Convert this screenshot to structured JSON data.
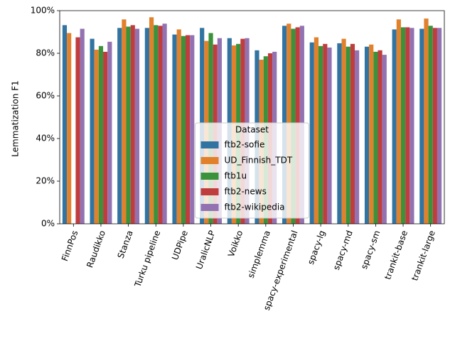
{
  "chart_data": {
    "type": "bar",
    "ylabel": "Lemmatization F1",
    "categories": [
      "FinnPos",
      "Raudikko",
      "Stanza",
      "Turku pipeline",
      "UDPipe",
      "UralicNLP",
      "Voikko",
      "simplemma",
      "spacy-experimental",
      "spacy-lg",
      "spacy-md",
      "spacy-sm",
      "trankit-base",
      "trankit-large"
    ],
    "legend_title": "Dataset",
    "legend": "lower center",
    "series": [
      {
        "name": "ftb2-sofie",
        "color": "#3274a1",
        "values": [
          93.2,
          86.8,
          91.9,
          91.9,
          88.8,
          91.9,
          87.1,
          81.4,
          92.9,
          85.1,
          84.7,
          83.1,
          91.2,
          91.5
        ]
      },
      {
        "name": "UD_Finnish_TDT",
        "color": "#e1812c",
        "values": [
          89.5,
          81.7,
          95.9,
          96.9,
          91.2,
          85.8,
          83.7,
          77.0,
          93.9,
          87.5,
          86.8,
          84.1,
          95.9,
          96.3
        ]
      },
      {
        "name": "ftb1u",
        "color": "#3a923a",
        "values": [
          null,
          83.4,
          92.5,
          93.2,
          88.1,
          89.5,
          84.4,
          78.6,
          91.5,
          83.4,
          83.1,
          80.7,
          92.2,
          92.9
        ]
      },
      {
        "name": "ftb2-news",
        "color": "#c03d3e",
        "values": [
          87.5,
          80.7,
          93.2,
          92.9,
          88.5,
          84.1,
          86.8,
          80.0,
          92.2,
          84.4,
          84.4,
          81.4,
          92.2,
          91.9
        ]
      },
      {
        "name": "ftb2-wikipedia",
        "color": "#9372b2",
        "values": [
          91.5,
          85.4,
          91.5,
          93.9,
          88.5,
          87.1,
          87.1,
          80.7,
          92.9,
          82.7,
          81.4,
          79.3,
          91.9,
          91.9
        ]
      }
    ],
    "ylim": [
      0,
      100
    ],
    "yticks": [
      {
        "value": 0,
        "label": "0%"
      },
      {
        "value": 20,
        "label": "20%"
      },
      {
        "value": 40,
        "label": "40%"
      },
      {
        "value": 60,
        "label": "60%"
      },
      {
        "value": 80,
        "label": "80%"
      },
      {
        "value": 100,
        "label": "100%"
      }
    ]
  }
}
